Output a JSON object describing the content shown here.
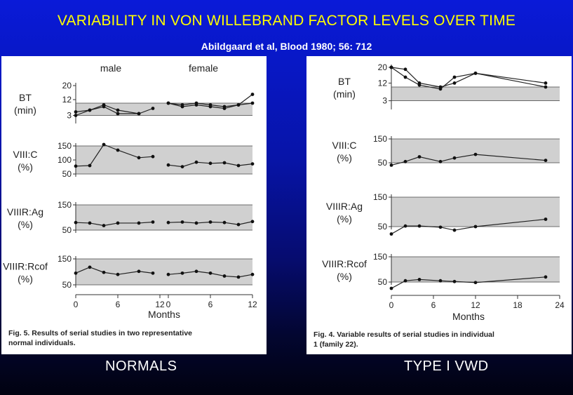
{
  "title": "VARIABILITY IN VON WILLEBRAND FACTOR LEVELS OVER TIME",
  "subtitle": "Abildgaard et al, Blood 1980; 56: 712",
  "labels": {
    "left": "NORMALS",
    "right": "TYPE I VWD"
  },
  "colors": {
    "background_top": "#0a1ad8",
    "background_bottom": "#010210",
    "title": "#ffff00",
    "band": "#d0d0d0"
  },
  "chart_data": [
    {
      "id": "fig5",
      "type": "line",
      "figure_caption": "Fig. 5.   Results of serial studies in two representative normal individuals.",
      "xlabel": "Months",
      "xticks": [
        0,
        6,
        12
      ],
      "column_titles": [
        "male",
        "female"
      ],
      "columns": [
        {
          "name": "male",
          "xlim": [
            0,
            12
          ],
          "xticks": [
            0,
            6,
            12
          ]
        },
        {
          "name": "female",
          "xlim": [
            0,
            12
          ],
          "xticks": [
            0,
            6,
            12
          ]
        }
      ],
      "panels": [
        {
          "label": [
            "BT",
            "(min)"
          ],
          "ylim": [
            0,
            20
          ],
          "yticks": [
            3,
            12,
            20
          ],
          "band": [
            3,
            10
          ],
          "series": [
            {
              "column": 0,
              "x": [
                0,
                2,
                4,
                6,
                9,
                11
              ],
              "y": [
                5,
                6,
                9,
                6,
                4,
                7
              ]
            },
            {
              "column": 0,
              "x": [
                0,
                2,
                4,
                6,
                9
              ],
              "y": [
                3,
                6,
                8,
                4,
                4
              ]
            },
            {
              "column": 1,
              "x": [
                0,
                2,
                4,
                6,
                8,
                10,
                12
              ],
              "y": [
                10,
                9,
                10,
                9,
                8,
                9,
                15
              ]
            },
            {
              "column": 1,
              "x": [
                0,
                2,
                4,
                6,
                8,
                10,
                12
              ],
              "y": [
                10,
                8,
                9,
                8,
                7,
                9,
                10
              ]
            }
          ]
        },
        {
          "label": [
            "VIII:C",
            "(%)"
          ],
          "ylim": [
            50,
            150
          ],
          "yticks": [
            50,
            100,
            150
          ],
          "band": [
            50,
            150
          ],
          "series": [
            {
              "column": 0,
              "x": [
                0,
                2,
                4,
                6,
                9,
                11
              ],
              "y": [
                78,
                80,
                155,
                135,
                108,
                112
              ]
            },
            {
              "column": 1,
              "x": [
                0,
                2,
                4,
                6,
                8,
                10,
                12
              ],
              "y": [
                82,
                76,
                92,
                88,
                90,
                80,
                86
              ]
            }
          ]
        },
        {
          "label": [
            "VIIIR:Ag",
            "(%)"
          ],
          "ylim": [
            50,
            150
          ],
          "yticks": [
            50,
            150
          ],
          "band": [
            50,
            150
          ],
          "series": [
            {
              "column": 0,
              "x": [
                0,
                2,
                4,
                6,
                9,
                11
              ],
              "y": [
                80,
                78,
                68,
                78,
                78,
                82
              ]
            },
            {
              "column": 1,
              "x": [
                0,
                2,
                4,
                6,
                8,
                10,
                12
              ],
              "y": [
                80,
                82,
                78,
                82,
                80,
                72,
                84
              ]
            }
          ]
        },
        {
          "label": [
            "VIIIR:Rcof",
            "(%)"
          ],
          "ylim": [
            50,
            150
          ],
          "yticks": [
            50,
            150
          ],
          "band": [
            50,
            150
          ],
          "series": [
            {
              "column": 0,
              "x": [
                0,
                2,
                4,
                6,
                9,
                11
              ],
              "y": [
                95,
                118,
                98,
                90,
                102,
                95
              ]
            },
            {
              "column": 1,
              "x": [
                0,
                2,
                4,
                6,
                8,
                10,
                12
              ],
              "y": [
                90,
                95,
                102,
                95,
                84,
                80,
                90
              ]
            }
          ]
        }
      ]
    },
    {
      "id": "fig4",
      "type": "line",
      "figure_caption": "Fig. 4.   Variable results of serial studies in individual 1 (family 22).",
      "xlabel": "Months",
      "xlim": [
        0,
        24
      ],
      "xticks": [
        0,
        6,
        12,
        18,
        24
      ],
      "panels": [
        {
          "label": [
            "BT",
            "(min)"
          ],
          "ylim": [
            0,
            20
          ],
          "yticks": [
            3,
            12,
            20
          ],
          "band": [
            3,
            10
          ],
          "series": [
            {
              "x": [
                0,
                2,
                4,
                7,
                9,
                12,
                22
              ],
              "y": [
                20,
                19,
                12,
                10,
                12,
                17,
                12
              ]
            },
            {
              "x": [
                0,
                2,
                4,
                7,
                9,
                12,
                22
              ],
              "y": [
                20,
                15,
                11,
                9,
                15,
                17,
                10
              ]
            }
          ]
        },
        {
          "label": [
            "VIII:C",
            "(%)"
          ],
          "ylim": [
            50,
            150
          ],
          "yticks": [
            50,
            150
          ],
          "band": [
            50,
            150
          ],
          "series": [
            {
              "x": [
                0,
                2,
                4,
                7,
                9,
                12,
                22
              ],
              "y": [
                40,
                55,
                75,
                55,
                70,
                85,
                60
              ]
            }
          ]
        },
        {
          "label": [
            "VIIIR:Ag",
            "(%)"
          ],
          "ylim": [
            50,
            150
          ],
          "yticks": [
            50,
            150
          ],
          "band": [
            50,
            150
          ],
          "series": [
            {
              "x": [
                0,
                2,
                4,
                7,
                9,
                12,
                22
              ],
              "y": [
                25,
                52,
                52,
                48,
                38,
                50,
                75
              ]
            }
          ]
        },
        {
          "label": [
            "VIIIR:Rcof",
            "(%)"
          ],
          "ylim": [
            50,
            150
          ],
          "yticks": [
            50,
            150
          ],
          "band": [
            50,
            150
          ],
          "series": [
            {
              "x": [
                0,
                2,
                4,
                7,
                9,
                12,
                22
              ],
              "y": [
                25,
                55,
                60,
                55,
                52,
                48,
                70
              ]
            }
          ]
        }
      ]
    }
  ]
}
